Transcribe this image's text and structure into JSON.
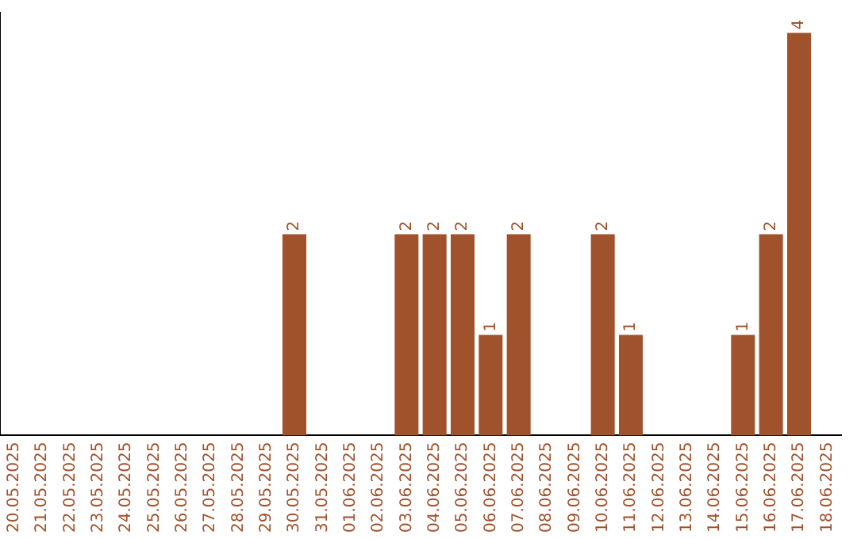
{
  "chart_data": {
    "type": "bar",
    "categories": [
      "20.05.2025",
      "21.05.2025",
      "22.05.2025",
      "23.05.2025",
      "24.05.2025",
      "25.05.2025",
      "26.05.2025",
      "27.05.2025",
      "28.05.2025",
      "29.05.2025",
      "30.05.2025",
      "31.05.2025",
      "01.06.2025",
      "02.06.2025",
      "03.06.2025",
      "04.06.2025",
      "05.06.2025",
      "06.06.2025",
      "07.06.2025",
      "08.06.2025",
      "09.06.2025",
      "10.06.2025",
      "11.06.2025",
      "12.06.2025",
      "13.06.2025",
      "14.06.2025",
      "15.06.2025",
      "16.06.2025",
      "17.06.2025",
      "18.06.2025"
    ],
    "values": [
      0,
      0,
      0,
      0,
      0,
      0,
      0,
      0,
      0,
      0,
      2,
      0,
      0,
      0,
      2,
      2,
      2,
      1,
      2,
      0,
      0,
      2,
      1,
      0,
      0,
      0,
      1,
      2,
      4,
      0
    ],
    "value_labels": [
      null,
      null,
      null,
      null,
      null,
      null,
      null,
      null,
      null,
      null,
      "2",
      null,
      null,
      null,
      "2",
      "2",
      "2",
      "1",
      "2",
      null,
      null,
      "2",
      "1",
      null,
      null,
      null,
      "1",
      "2",
      "4",
      null
    ],
    "color": "#a0522d",
    "ylim": [
      0,
      4.2
    ],
    "tick_labels": "x",
    "grid": false,
    "legend": false
  }
}
